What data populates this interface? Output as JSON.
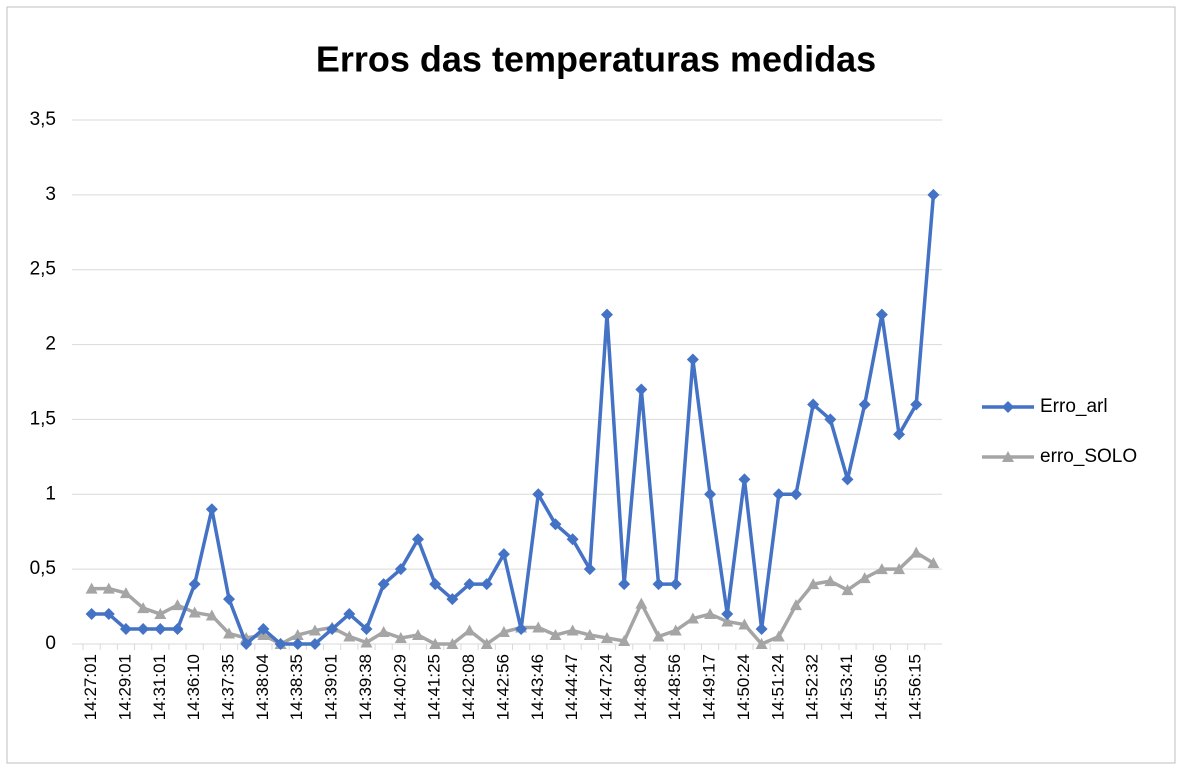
{
  "chart_data": {
    "type": "line",
    "title": "Erros das temperaturas medidas",
    "categories": [
      "14:27:01",
      null,
      "14:29:01",
      null,
      "14:31:01",
      null,
      "14:36:10",
      null,
      "14:37:35",
      null,
      "14:38:04",
      null,
      "14:38:35",
      null,
      "14:39:01",
      null,
      "14:39:38",
      null,
      "14:40:29",
      null,
      "14:41:25",
      null,
      "14:42:08",
      null,
      "14:42:56",
      null,
      "14:43:46",
      null,
      "14:44:47",
      null,
      "14:47:24",
      null,
      "14:48:04",
      null,
      "14:48:56",
      null,
      "14:49:17",
      null,
      "14:50:24",
      null,
      "14:51:24",
      null,
      "14:52:32",
      null,
      "14:53:41",
      null,
      "14:55:06",
      null,
      "14:56:15",
      null
    ],
    "series": [
      {
        "name": "Erro_arl",
        "color": "#4472c4",
        "marker": "diamond",
        "values": [
          0.2,
          0.2,
          0.1,
          0.1,
          0.1,
          0.1,
          0.4,
          0.9,
          0.3,
          0,
          0.1,
          0,
          0,
          0,
          0.1,
          0.2,
          0.1,
          0.4,
          0.5,
          0.7,
          0.4,
          0.3,
          0.4,
          0.4,
          0.6,
          0.1,
          1,
          0.8,
          0.7,
          0.5,
          2.2,
          0.4,
          1.7,
          0.4,
          0.4,
          1.9,
          1,
          0.2,
          1.1,
          0.1,
          1,
          1,
          1.6,
          1.5,
          1.1,
          1.6,
          2.2,
          1.4,
          1.6,
          3
        ]
      },
      {
        "name": "erro_SOLO",
        "color": "#a5a5a5",
        "marker": "triangle",
        "values": [
          0.37,
          0.37,
          0.34,
          0.24,
          0.2,
          0.26,
          0.21,
          0.19,
          0.07,
          0.04,
          0.06,
          0,
          0.06,
          0.09,
          0.11,
          0.05,
          0.01,
          0.08,
          0.04,
          0.06,
          0,
          0,
          0.09,
          0,
          0.08,
          0.11,
          0.11,
          0.06,
          0.09,
          0.06,
          0.04,
          0.02,
          0.27,
          0.05,
          0.09,
          0.17,
          0.2,
          0.15,
          0.13,
          0,
          0.05,
          0.26,
          0.4,
          0.42,
          0.36,
          0.44,
          0.5,
          0.5,
          0.61,
          0.54
        ]
      }
    ],
    "ylim": [
      0,
      3.5
    ],
    "yticks": [
      0,
      {
        "value": 0.5,
        "label": "0,5"
      },
      1,
      {
        "value": 1.5,
        "label": "1,5"
      },
      2,
      {
        "value": 2.5,
        "label": "2,5"
      },
      3,
      {
        "value": 3.5,
        "label": "3,5"
      }
    ],
    "grid": true,
    "legend": "right"
  }
}
